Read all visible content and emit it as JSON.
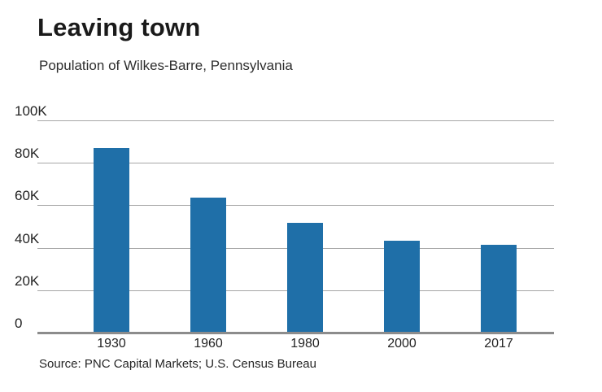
{
  "chart_data": {
    "type": "bar",
    "title": "Leaving town",
    "subtitle": "Population of Wilkes-Barre, Pennsylvania",
    "source": "Source: PNC Capital Markets; U.S. Census Bureau",
    "categories": [
      "1930",
      "1960",
      "1980",
      "2000",
      "2017"
    ],
    "values": [
      86400,
      63200,
      51500,
      43100,
      41000
    ],
    "xlabel": "",
    "ylabel": "",
    "ylim": [
      0,
      100000
    ],
    "y_ticks": [
      {
        "value": 0,
        "label": "0"
      },
      {
        "value": 20000,
        "label": "20K"
      },
      {
        "value": 40000,
        "label": "40K"
      },
      {
        "value": 60000,
        "label": "60K"
      },
      {
        "value": 80000,
        "label": "80K"
      },
      {
        "value": 100000,
        "label": "100K"
      }
    ],
    "grid": "horizontal",
    "legend_position": "none",
    "colors": {
      "bar": "#1f6fa8",
      "gridline": "#a6a6a6",
      "axis_line": "#8c8c8c",
      "title_text": "#1a1a1a",
      "subtitle_text": "#2e2e2e",
      "tick_text": "#222222",
      "source_text": "#262626",
      "background": "#ffffff"
    }
  }
}
